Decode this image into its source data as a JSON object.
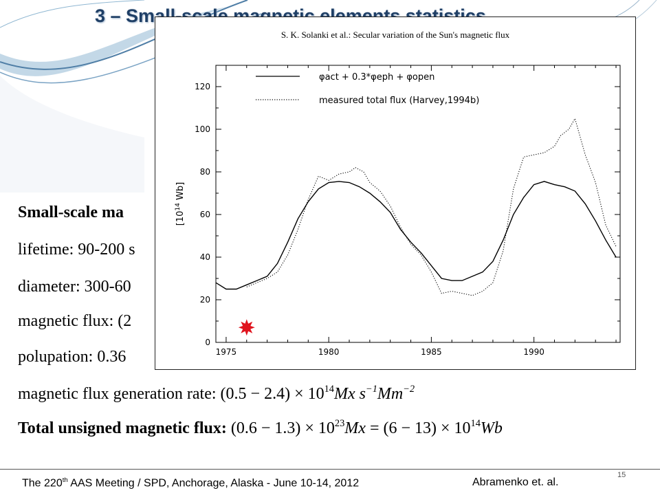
{
  "slide": {
    "title": "3 – Small-scale magnetic elements statistics",
    "lines": {
      "header": "Small-scale ma",
      "lifetime": "lifetime:  90-200 s",
      "diameter": "diameter:  300-60",
      "flux": "magnetic flux:  (2",
      "population": "polupation:  0.36",
      "rate_label": "magnetic flux generation rate:",
      "rate_value": "(0.5 − 2.4) × 10",
      "rate_exp": "14",
      "rate_unit": "Mx s",
      "rate_unit_exp1": "−1",
      "rate_unit2": "Mm",
      "rate_unit_exp2": "−2",
      "total_label": "Total unsigned magnetic flux:",
      "total_value1": "(0.6 − 1.3) × 10",
      "total_exp1": "23",
      "total_unit1": "Mx",
      "total_eq": " = (6 − 13) × 10",
      "total_exp2": "14",
      "total_unit2": "Wb"
    },
    "footer": {
      "meeting": "The 220",
      "meeting_sup": "th",
      "meeting_rest": " AAS Meeting / SPD, Anchorage, Alaska  -  June 10-14, 2012",
      "authors": "Abramenko et. al.",
      "page": "15"
    }
  },
  "chart_data": {
    "type": "line",
    "title": "S. K. Solanki et al.: Secular variation of the Sun's magnetic flux",
    "ylabel": "[10^14 Wb]",
    "xlabel": "",
    "xlim": [
      1974.5,
      1994.2
    ],
    "ylim": [
      0,
      130
    ],
    "xticks": [
      1975,
      1980,
      1985,
      1990
    ],
    "yticks": [
      0,
      20,
      40,
      60,
      80,
      100,
      120
    ],
    "legend_position": "top-left",
    "series": [
      {
        "name": "φact + 0.3*φeph + φopen",
        "style": "solid",
        "x": [
          1974.5,
          1975.0,
          1975.5,
          1976.0,
          1976.5,
          1977.0,
          1977.5,
          1978.0,
          1978.5,
          1979.0,
          1979.5,
          1980.0,
          1980.5,
          1981.0,
          1981.5,
          1982.0,
          1982.5,
          1983.0,
          1983.5,
          1984.0,
          1984.5,
          1985.0,
          1985.5,
          1986.0,
          1986.5,
          1987.0,
          1987.5,
          1988.0,
          1988.5,
          1989.0,
          1989.5,
          1990.0,
          1990.5,
          1991.0,
          1991.5,
          1992.0,
          1992.5,
          1993.0,
          1993.5,
          1994.0
        ],
        "y": [
          28,
          25,
          25,
          27,
          29,
          31,
          37,
          47,
          58,
          66,
          72,
          75,
          75.5,
          75,
          73,
          70,
          66,
          61,
          53,
          47,
          42,
          36,
          30,
          29,
          29,
          31,
          33,
          38,
          48,
          60,
          68,
          74,
          75.5,
          74,
          73,
          71,
          65,
          57,
          48,
          40
        ]
      },
      {
        "name": "measured total flux (Harvey,1994b)",
        "style": "dotted",
        "x": [
          1976.0,
          1976.5,
          1977.0,
          1977.5,
          1978.0,
          1978.5,
          1979.0,
          1979.5,
          1980.0,
          1980.5,
          1981.0,
          1981.3,
          1981.7,
          1982.0,
          1982.5,
          1983.0,
          1983.5,
          1984.0,
          1984.5,
          1985.0,
          1985.5,
          1986.0,
          1986.5,
          1987.0,
          1987.5,
          1988.0,
          1988.5,
          1989.0,
          1989.5,
          1990.0,
          1990.5,
          1991.0,
          1991.3,
          1991.7,
          1992.0,
          1992.5,
          1993.0,
          1993.5,
          1994.0
        ],
        "y": [
          26,
          28,
          30,
          33,
          41,
          53,
          67,
          78,
          76,
          79,
          80,
          82,
          80,
          75,
          71,
          64,
          54,
          46,
          41,
          33,
          23,
          24,
          23,
          22,
          24,
          28,
          43,
          72,
          87,
          88,
          89,
          92,
          97,
          100,
          105,
          88,
          75,
          55,
          45
        ]
      }
    ],
    "legend": [
      {
        "label": "φact + 0.3*φeph + φopen",
        "style": "solid"
      },
      {
        "label": "measured total flux (Harvey,1994b)",
        "style": "dotted"
      }
    ],
    "marker": {
      "label": "star-marker",
      "x": 1976.0,
      "y": 7,
      "color": "#e0141e"
    }
  }
}
